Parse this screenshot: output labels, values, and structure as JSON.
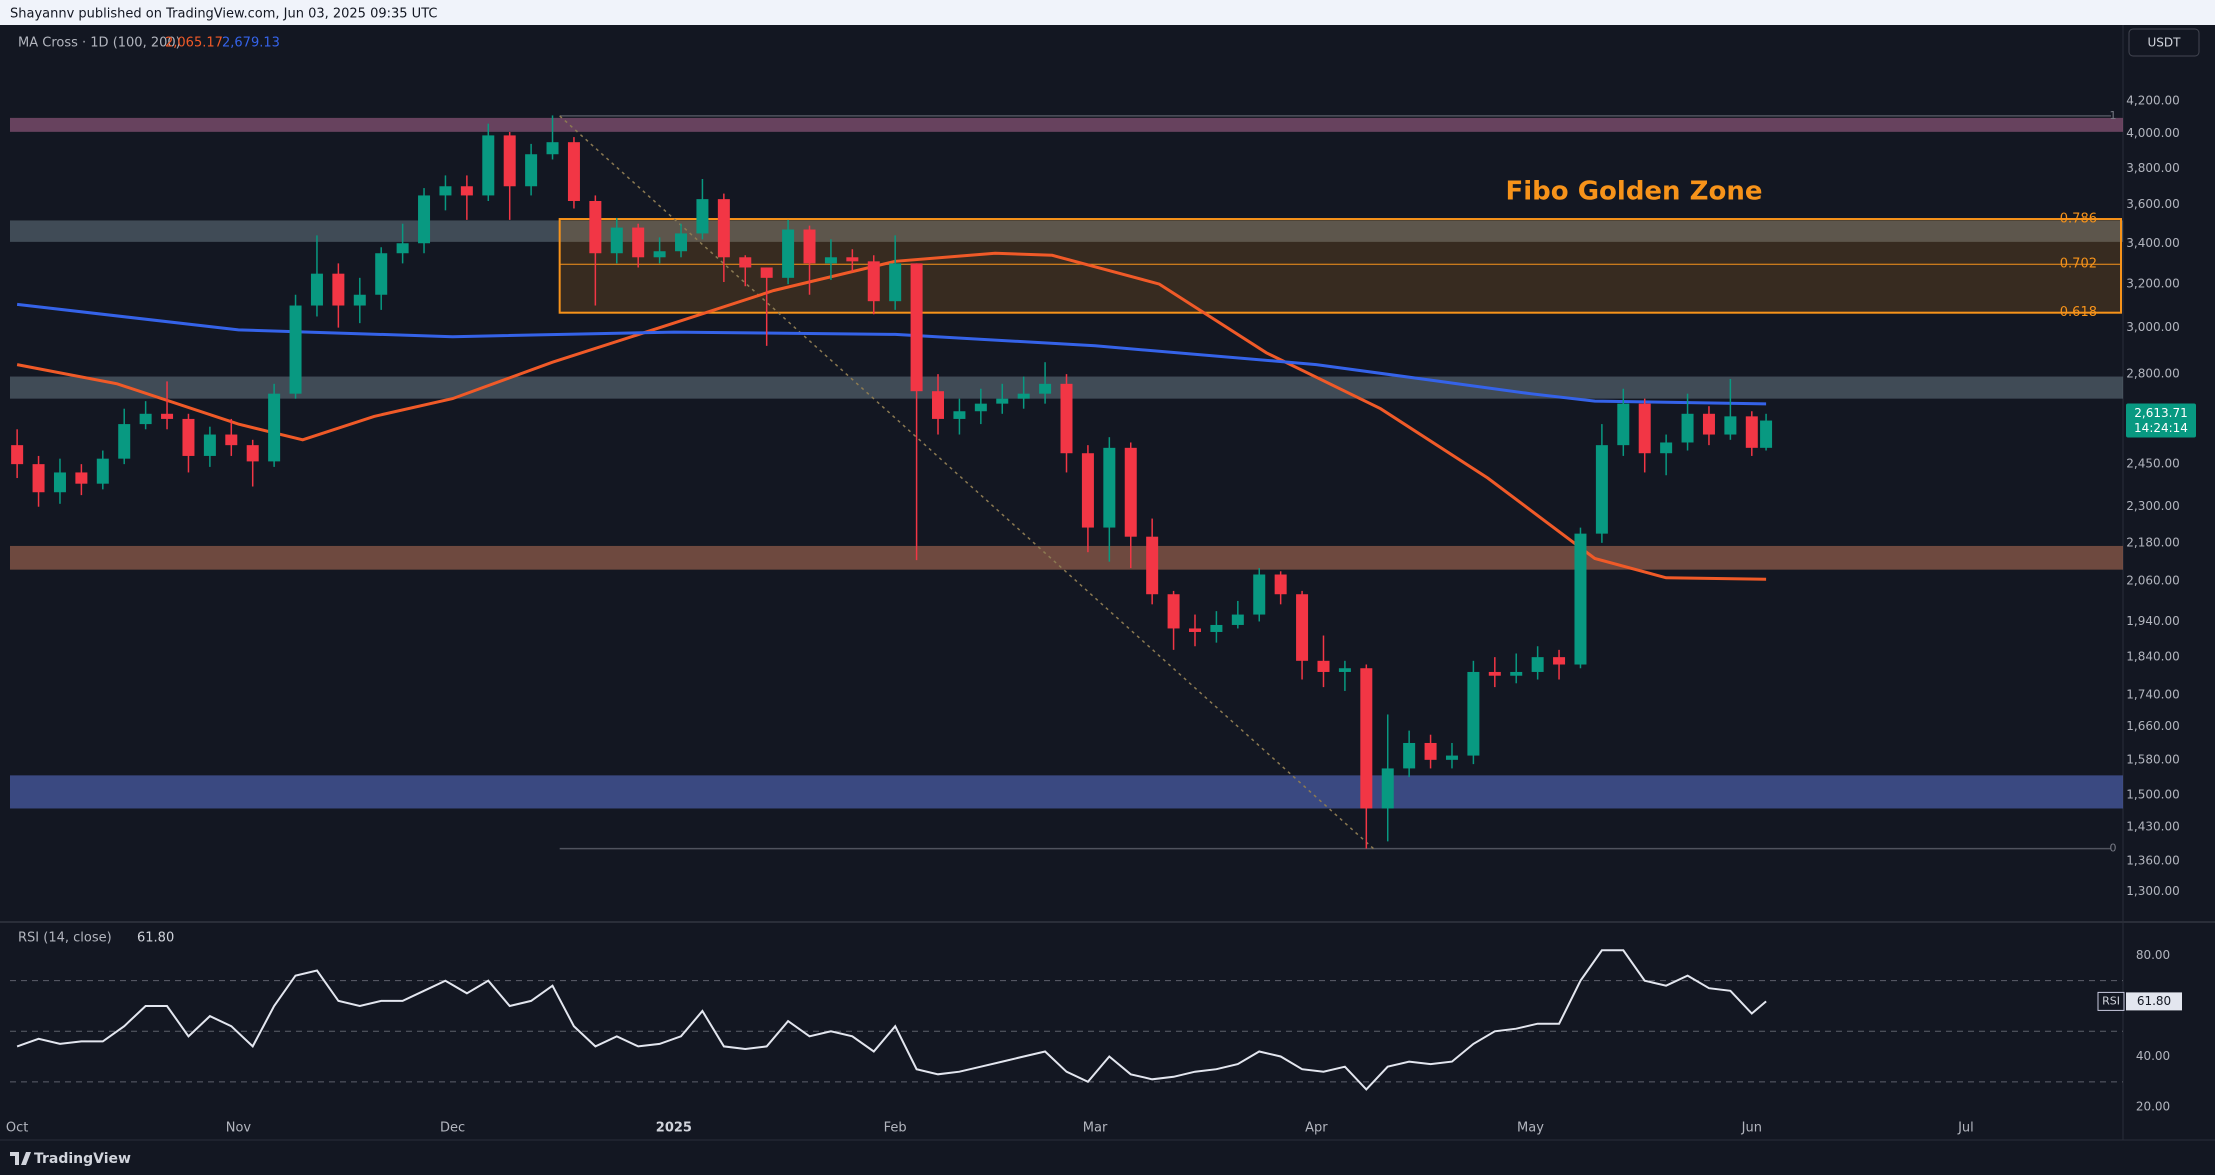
{
  "header": {
    "publisher": "Shayannv published on TradingView.com, Jun 03, 2025 09:35 UTC"
  },
  "footer": {
    "brand": "TradingView"
  },
  "chart_data": [
    {
      "type": "candlestick",
      "currency": "USDT",
      "log_scale": true,
      "indicator": "MA Cross · 1D (100, 200)",
      "up_color": "#089981",
      "down_color": "#f23645",
      "xlim": [
        "2024-09-30",
        "2025-07-23"
      ],
      "xticks": [
        {
          "value": "2024-10-01",
          "label": "Oct"
        },
        {
          "value": "2024-11-01",
          "label": "Nov"
        },
        {
          "value": "2024-12-01",
          "label": "Dec"
        },
        {
          "value": "2025-01-01",
          "label": "2025"
        },
        {
          "value": "2025-02-01",
          "label": "Feb"
        },
        {
          "value": "2025-03-01",
          "label": "Mar"
        },
        {
          "value": "2025-04-01",
          "label": "Apr"
        },
        {
          "value": "2025-05-01",
          "label": "May"
        },
        {
          "value": "2025-06-01",
          "label": "Jun"
        },
        {
          "value": "2025-07-01",
          "label": "Jul"
        }
      ],
      "ylim": [
        1244,
        4700
      ],
      "yticks": [
        {
          "value": 4200,
          "label": "4,200.00"
        },
        {
          "value": 4000,
          "label": "4,000.00"
        },
        {
          "value": 3800,
          "label": "3,800.00"
        },
        {
          "value": 3600,
          "label": "3,600.00"
        },
        {
          "value": 3400,
          "label": "3,400.00"
        },
        {
          "value": 3200,
          "label": "3,200.00"
        },
        {
          "value": 3000,
          "label": "3,000.00"
        },
        {
          "value": 2800,
          "label": "2,800.00"
        },
        {
          "value": 2450,
          "label": "2,450.00"
        },
        {
          "value": 2300,
          "label": "2,300.00"
        },
        {
          "value": 2180,
          "label": "2,180.00"
        },
        {
          "value": 2060,
          "label": "2,060.00"
        },
        {
          "value": 1940,
          "label": "1,940.00"
        },
        {
          "value": 1840,
          "label": "1,840.00"
        },
        {
          "value": 1740,
          "label": "1,740.00"
        },
        {
          "value": 1660,
          "label": "1,660.00"
        },
        {
          "value": 1580,
          "label": "1,580.00"
        },
        {
          "value": 1500,
          "label": "1,500.00"
        },
        {
          "value": 1430,
          "label": "1,430.00"
        },
        {
          "value": 1360,
          "label": "1,360.00"
        },
        {
          "value": 1300,
          "label": "1,300.00"
        }
      ],
      "x": [
        "2024-10-01",
        "2024-10-04",
        "2024-10-07",
        "2024-10-10",
        "2024-10-13",
        "2024-10-16",
        "2024-10-19",
        "2024-10-22",
        "2024-10-25",
        "2024-10-28",
        "2024-10-31",
        "2024-11-03",
        "2024-11-06",
        "2024-11-09",
        "2024-11-12",
        "2024-11-15",
        "2024-11-18",
        "2024-11-21",
        "2024-11-24",
        "2024-11-27",
        "2024-11-30",
        "2024-12-03",
        "2024-12-06",
        "2024-12-09",
        "2024-12-12",
        "2024-12-15",
        "2024-12-18",
        "2024-12-21",
        "2024-12-24",
        "2024-12-27",
        "2024-12-30",
        "2025-01-02",
        "2025-01-05",
        "2025-01-08",
        "2025-01-11",
        "2025-01-14",
        "2025-01-17",
        "2025-01-20",
        "2025-01-23",
        "2025-01-26",
        "2025-01-29",
        "2025-02-01",
        "2025-02-04",
        "2025-02-07",
        "2025-02-10",
        "2025-02-13",
        "2025-02-16",
        "2025-02-19",
        "2025-02-22",
        "2025-02-25",
        "2025-02-28",
        "2025-03-03",
        "2025-03-06",
        "2025-03-09",
        "2025-03-12",
        "2025-03-15",
        "2025-03-18",
        "2025-03-21",
        "2025-03-24",
        "2025-03-27",
        "2025-03-30",
        "2025-04-02",
        "2025-04-05",
        "2025-04-08",
        "2025-04-11",
        "2025-04-14",
        "2025-04-17",
        "2025-04-20",
        "2025-04-23",
        "2025-04-26",
        "2025-04-29",
        "2025-05-02",
        "2025-05-05",
        "2025-05-08",
        "2025-05-11",
        "2025-05-14",
        "2025-05-17",
        "2025-05-20",
        "2025-05-23",
        "2025-05-26",
        "2025-05-29",
        "2025-06-01",
        "2025-06-03"
      ],
      "open": [
        2520,
        2450,
        2350,
        2420,
        2380,
        2470,
        2600,
        2640,
        2620,
        2480,
        2560,
        2520,
        2460,
        2720,
        3100,
        3250,
        3100,
        3150,
        3350,
        3400,
        3650,
        3700,
        3650,
        3990,
        3700,
        3880,
        3950,
        3620,
        3350,
        3480,
        3330,
        3360,
        3450,
        3630,
        3330,
        3280,
        3230,
        3470,
        3300,
        3330,
        3310,
        3120,
        3300,
        2730,
        2620,
        2650,
        2680,
        2700,
        2720,
        2760,
        2490,
        2230,
        2510,
        2200,
        2020,
        1920,
        1910,
        1930,
        1960,
        2080,
        2020,
        1830,
        1800,
        1810,
        1470,
        1560,
        1620,
        1580,
        1590,
        1800,
        1790,
        1800,
        1840,
        1820,
        2210,
        2520,
        2680,
        2490,
        2530,
        2640,
        2560,
        2630,
        2510
      ],
      "high": [
        2580,
        2480,
        2470,
        2450,
        2500,
        2660,
        2690,
        2770,
        2640,
        2590,
        2620,
        2540,
        2760,
        3150,
        3440,
        3300,
        3230,
        3380,
        3500,
        3690,
        3760,
        3760,
        4060,
        4010,
        3940,
        4110,
        3980,
        3650,
        3530,
        3500,
        3430,
        3500,
        3740,
        3660,
        3340,
        3280,
        3520,
        3490,
        3420,
        3370,
        3340,
        3440,
        3300,
        2800,
        2700,
        2740,
        2760,
        2790,
        2850,
        2800,
        2520,
        2550,
        2530,
        2260,
        2030,
        1960,
        1970,
        2000,
        2100,
        2090,
        2030,
        1900,
        1830,
        1820,
        1690,
        1650,
        1640,
        1620,
        1830,
        1840,
        1850,
        1870,
        1860,
        2230,
        2600,
        2740,
        2700,
        2560,
        2720,
        2670,
        2780,
        2650,
        2640
      ],
      "low": [
        2400,
        2300,
        2310,
        2340,
        2360,
        2450,
        2580,
        2580,
        2420,
        2440,
        2480,
        2370,
        2440,
        2700,
        3050,
        3000,
        3020,
        3080,
        3300,
        3350,
        3570,
        3520,
        3620,
        3520,
        3650,
        3850,
        3580,
        3100,
        3300,
        3280,
        3300,
        3330,
        3420,
        3210,
        3190,
        2920,
        3200,
        3150,
        3220,
        3260,
        3060,
        3080,
        2125,
        2560,
        2560,
        2600,
        2640,
        2660,
        2680,
        2420,
        2150,
        2120,
        2100,
        1990,
        1860,
        1870,
        1880,
        1920,
        1940,
        1990,
        1780,
        1760,
        1750,
        1385,
        1400,
        1540,
        1560,
        1560,
        1570,
        1760,
        1770,
        1780,
        1780,
        1810,
        2180,
        2480,
        2420,
        2410,
        2500,
        2520,
        2540,
        2480,
        2500
      ],
      "close": [
        2450,
        2350,
        2420,
        2380,
        2470,
        2600,
        2640,
        2620,
        2480,
        2560,
        2520,
        2460,
        2720,
        3100,
        3250,
        3100,
        3150,
        3350,
        3400,
        3650,
        3700,
        3650,
        3990,
        3700,
        3880,
        3950,
        3620,
        3350,
        3480,
        3330,
        3360,
        3450,
        3630,
        3330,
        3280,
        3230,
        3470,
        3300,
        3330,
        3310,
        3120,
        3300,
        2730,
        2620,
        2650,
        2680,
        2700,
        2720,
        2760,
        2490,
        2230,
        2510,
        2200,
        2020,
        1920,
        1910,
        1930,
        1960,
        2080,
        2020,
        1830,
        1800,
        1810,
        1470,
        1560,
        1620,
        1580,
        1590,
        1800,
        1790,
        1800,
        1840,
        1820,
        2210,
        2520,
        2680,
        2490,
        2530,
        2640,
        2560,
        2630,
        2510,
        2613.71
      ],
      "last_price_label": "2,613.71",
      "countdown": "14:24:14",
      "series": [
        {
          "color": "#f05a28",
          "x": [
            "2024-10-01",
            "2024-10-15",
            "2024-11-01",
            "2024-11-10",
            "2024-11-20",
            "2024-12-01",
            "2024-12-15",
            "2025-01-01",
            "2025-01-15",
            "2025-02-01",
            "2025-02-15",
            "2025-02-23",
            "2025-03-10",
            "2025-03-25",
            "2025-04-10",
            "2025-04-25",
            "2025-05-10",
            "2025-05-20",
            "2025-06-03"
          ],
          "values": [
            2840,
            2760,
            2600,
            2540,
            2630,
            2700,
            2850,
            3020,
            3170,
            3310,
            3350,
            3340,
            3200,
            2890,
            2660,
            2400,
            2130,
            2070,
            2065.17
          ],
          "last_label": "2,065.17"
        },
        {
          "color": "#3563e9",
          "x": [
            "2024-10-01",
            "2024-11-01",
            "2024-12-01",
            "2025-01-01",
            "2025-02-01",
            "2025-03-01",
            "2025-04-01",
            "2025-05-01",
            "2025-05-10",
            "2025-06-03"
          ],
          "values": [
            3105,
            2990,
            2960,
            2980,
            2970,
            2920,
            2840,
            2720,
            2690,
            2679.13
          ],
          "last_label": "2,679.13"
        }
      ],
      "zones": [
        {
          "low": 4011,
          "high": 4095,
          "color": "rgba(160,95,135,0.6)"
        },
        {
          "low": 3407,
          "high": 3517,
          "color": "rgba(120,140,150,0.45)"
        },
        {
          "low": 2700,
          "high": 2790,
          "color": "rgba(120,140,150,0.45)"
        },
        {
          "low": 2095,
          "high": 2170,
          "color": "rgba(150,95,75,0.7)"
        },
        {
          "low": 1470,
          "high": 1544,
          "color": "rgba(75,95,170,0.7)"
        }
      ],
      "fib": {
        "from": "2024-12-16",
        "to": "2025-04-09",
        "high": 4107,
        "low": 1385,
        "zone_levels": [
          0.786,
          0.702,
          0.618
        ],
        "range_levels": [
          1,
          0
        ],
        "color": "#f7931a",
        "title": "Fibo Golden Zone"
      }
    },
    {
      "type": "line",
      "title": "RSI (14, close)",
      "tag": "RSI",
      "color": "#e3e6ef",
      "ylim": [
        16.5,
        92
      ],
      "yticks": [
        {
          "value": 80,
          "label": "80.00"
        },
        {
          "value": 40,
          "label": "40.00"
        },
        {
          "value": 20,
          "label": "20.00"
        }
      ],
      "bands": [
        70,
        50,
        30
      ],
      "values": [
        44,
        47,
        45,
        46,
        46,
        52,
        60,
        60,
        48,
        56,
        52,
        44,
        60,
        72,
        74,
        62,
        60,
        62,
        62,
        66,
        70,
        65,
        70,
        60,
        62,
        68,
        52,
        44,
        48,
        44,
        45,
        48,
        58,
        44,
        43,
        44,
        54,
        48,
        50,
        48,
        42,
        52,
        35,
        33,
        34,
        36,
        38,
        40,
        42,
        34,
        30,
        40,
        33,
        31,
        32,
        34,
        35,
        37,
        42,
        40,
        35,
        34,
        36,
        27,
        36,
        38,
        37,
        38,
        45,
        50,
        51,
        53,
        53,
        70,
        82,
        82,
        70,
        68,
        72,
        67,
        66,
        57,
        61.8
      ],
      "last_label": "61.80"
    }
  ]
}
